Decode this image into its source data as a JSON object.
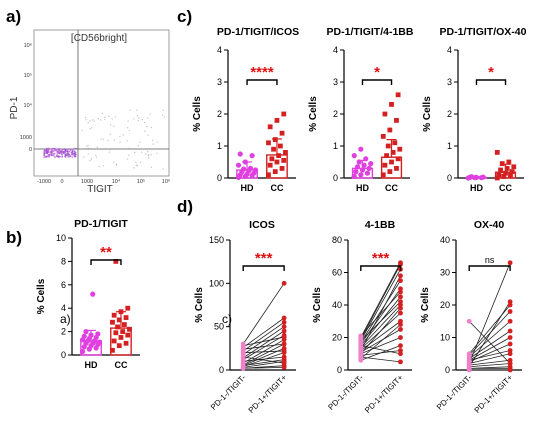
{
  "panel_labels": {
    "a": "a)",
    "b": "b)",
    "c": "c)",
    "d": "d)"
  },
  "inset_labels": {
    "b_inset": "a)",
    "d_inset": "c)"
  },
  "colors": {
    "hd": "#e040e0",
    "cc": "#d42020",
    "pink": "#f080c8",
    "line": "#222222",
    "sig": "#e01010"
  },
  "flow": {
    "title": "[CD56bright]",
    "ylabel": "PD-1",
    "xlabel": "TIGIT",
    "yticks": [
      "10⁶",
      "10⁵",
      "10⁴",
      "1000",
      "0"
    ],
    "xticks": [
      "-1000",
      "0",
      "1000",
      "10⁴",
      "10⁵",
      "10⁶"
    ]
  },
  "chart_data": [
    {
      "id": "b",
      "type": "bar",
      "title": "PD-1/TIGIT",
      "ylabel": "% Cells",
      "categories": [
        "HD",
        "CC"
      ],
      "ylim": [
        0,
        10
      ],
      "yticks": [
        "0",
        "2",
        "4",
        "6",
        "8",
        "10"
      ],
      "means": [
        1.2,
        2.3
      ],
      "sd": [
        0.9,
        1.4
      ],
      "points_hd": [
        0.3,
        0.5,
        0.6,
        0.7,
        0.8,
        0.9,
        1.0,
        1.0,
        1.1,
        1.2,
        1.2,
        1.3,
        1.4,
        1.5,
        1.6,
        1.7,
        1.8,
        2.0,
        5.2
      ],
      "points_cc": [
        0.4,
        0.8,
        1.0,
        1.2,
        1.5,
        1.7,
        1.9,
        2.0,
        2.2,
        2.4,
        2.6,
        2.8,
        3.0,
        3.2,
        3.4,
        3.7,
        4.0,
        8.0
      ],
      "significance": "**"
    },
    {
      "id": "c1",
      "type": "bar",
      "title": "PD-1/TIGIT/ICOS",
      "ylabel": "% Cells",
      "categories": [
        "HD",
        "CC"
      ],
      "ylim": [
        0,
        4
      ],
      "yticks": [
        "0",
        "1",
        "2",
        "3",
        "4"
      ],
      "means": [
        0.25,
        0.72
      ],
      "sd": [
        0.25,
        0.5
      ],
      "points_hd": [
        0.02,
        0.05,
        0.08,
        0.1,
        0.12,
        0.15,
        0.2,
        0.22,
        0.25,
        0.28,
        0.3,
        0.4,
        0.5,
        0.7,
        0.75
      ],
      "points_cc": [
        0.1,
        0.2,
        0.3,
        0.4,
        0.5,
        0.55,
        0.6,
        0.7,
        0.8,
        0.9,
        1.0,
        1.1,
        1.2,
        1.4,
        1.6,
        1.8,
        2.0
      ],
      "significance": "****"
    },
    {
      "id": "c2",
      "type": "bar",
      "title": "PD-1/TIGIT/4-1BB",
      "ylabel": "% Cells",
      "categories": [
        "HD",
        "CC"
      ],
      "ylim": [
        0,
        4
      ],
      "yticks": [
        "0",
        "1",
        "2",
        "3",
        "4"
      ],
      "means": [
        0.3,
        0.65
      ],
      "sd": [
        0.25,
        0.55
      ],
      "points_hd": [
        0.05,
        0.1,
        0.15,
        0.2,
        0.25,
        0.3,
        0.35,
        0.4,
        0.45,
        0.5,
        0.6,
        0.7,
        0.9
      ],
      "points_cc": [
        0.1,
        0.2,
        0.3,
        0.4,
        0.5,
        0.6,
        0.7,
        0.8,
        0.9,
        1.0,
        1.1,
        1.3,
        1.5,
        1.8,
        2.0,
        2.3,
        2.6
      ],
      "significance": "*"
    },
    {
      "id": "c3",
      "type": "bar",
      "title": "PD-1/TIGIT/OX-40",
      "ylabel": "% Cells",
      "categories": [
        "HD",
        "CC"
      ],
      "ylim": [
        0,
        4
      ],
      "yticks": [
        "0",
        "1",
        "2",
        "3",
        "4"
      ],
      "means": [
        0.02,
        0.18
      ],
      "sd": [
        0.02,
        0.25
      ],
      "points_hd": [
        0.0,
        0.01,
        0.01,
        0.02,
        0.02,
        0.03,
        0.04
      ],
      "points_cc": [
        0.0,
        0.05,
        0.08,
        0.1,
        0.15,
        0.2,
        0.25,
        0.3,
        0.35,
        0.45,
        0.5,
        0.8
      ],
      "significance": "*"
    },
    {
      "id": "d1",
      "type": "line",
      "title": "ICOS",
      "ylabel": "% Cells",
      "categories": [
        "PD-1-/TIGIT-",
        "PD-1+/TIGIT+"
      ],
      "ylim": [
        0,
        150
      ],
      "yticks": [
        "0",
        "50",
        "100",
        "150"
      ],
      "pairs": [
        [
          2,
          5
        ],
        [
          3,
          10
        ],
        [
          4,
          20
        ],
        [
          5,
          25
        ],
        [
          6,
          30
        ],
        [
          8,
          35
        ],
        [
          10,
          15
        ],
        [
          12,
          40
        ],
        [
          14,
          45
        ],
        [
          15,
          8
        ],
        [
          18,
          50
        ],
        [
          20,
          22
        ],
        [
          22,
          55
        ],
        [
          24,
          30
        ],
        [
          26,
          60
        ],
        [
          28,
          38
        ],
        [
          30,
          100
        ],
        [
          2,
          3
        ],
        [
          5,
          12
        ]
      ],
      "significance": "***"
    },
    {
      "id": "d2",
      "type": "line",
      "title": "4-1BB",
      "ylabel": "% Cells",
      "categories": [
        "PD-1-/TIGIT-",
        "PD-1+/TIGIT+"
      ],
      "ylim": [
        0,
        80
      ],
      "yticks": [
        "0",
        "20",
        "40",
        "60",
        "80"
      ],
      "pairs": [
        [
          8,
          5
        ],
        [
          9,
          12
        ],
        [
          10,
          20
        ],
        [
          11,
          25
        ],
        [
          12,
          30
        ],
        [
          13,
          35
        ],
        [
          14,
          40
        ],
        [
          15,
          45
        ],
        [
          16,
          50
        ],
        [
          17,
          55
        ],
        [
          18,
          62
        ],
        [
          19,
          65
        ],
        [
          20,
          66
        ],
        [
          21,
          48
        ],
        [
          6,
          15
        ],
        [
          7,
          28
        ],
        [
          10,
          38
        ],
        [
          12,
          58
        ],
        [
          15,
          10
        ],
        [
          18,
          42
        ]
      ],
      "significance": "***"
    },
    {
      "id": "d3",
      "type": "line",
      "title": "OX-40",
      "ylabel": "% Cells",
      "categories": [
        "PD-1-/TIGIT-",
        "PD-1+/TIGIT+"
      ],
      "ylim": [
        0,
        40
      ],
      "yticks": [
        "0",
        "10",
        "20",
        "30",
        "40"
      ],
      "pairs": [
        [
          0,
          0
        ],
        [
          0.5,
          1
        ],
        [
          1,
          2
        ],
        [
          1.5,
          3
        ],
        [
          2,
          5
        ],
        [
          2.5,
          8
        ],
        [
          3,
          10
        ],
        [
          3.5,
          12
        ],
        [
          4,
          15
        ],
        [
          4.5,
          18
        ],
        [
          5,
          20
        ],
        [
          15,
          2
        ],
        [
          1,
          21
        ],
        [
          2,
          33
        ],
        [
          0.5,
          0.5
        ],
        [
          3,
          6
        ]
      ],
      "significance": "ns"
    }
  ]
}
